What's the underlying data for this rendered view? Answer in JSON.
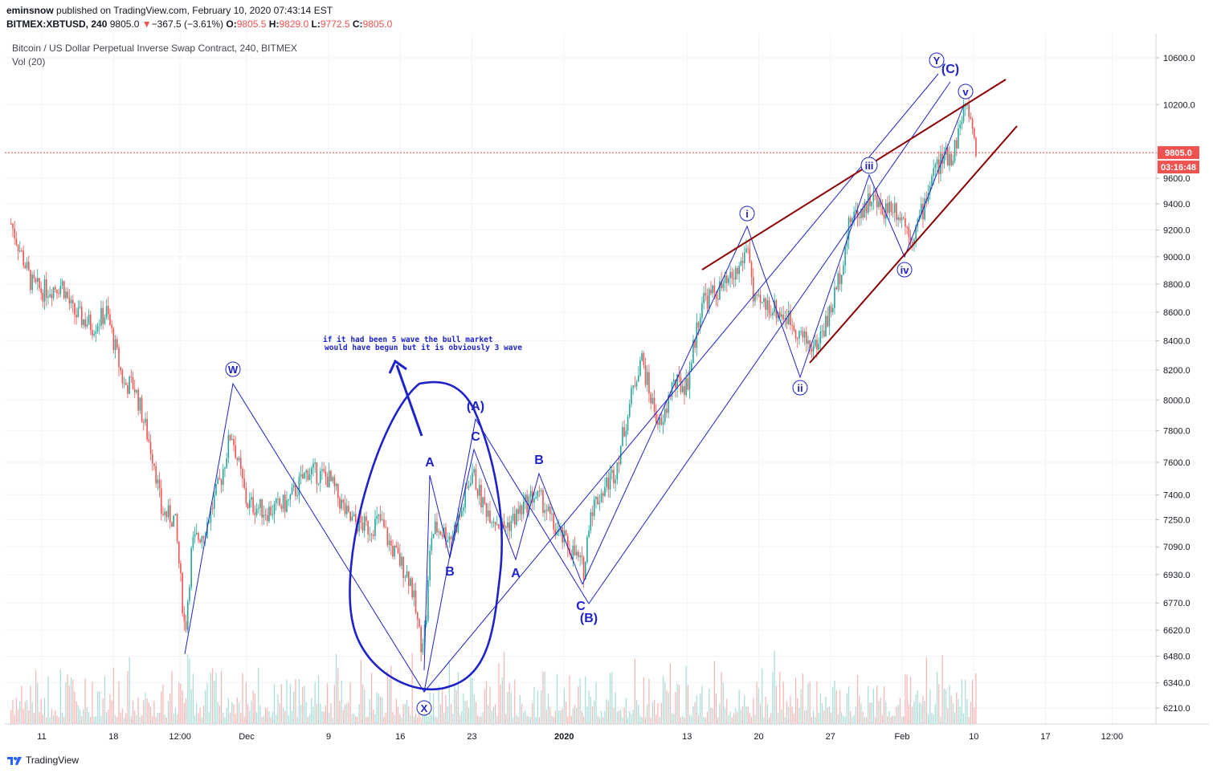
{
  "header": {
    "author": "eminsnow",
    "published": "published on TradingView.com, February 10, 2020 07:43:14 EST",
    "symbol": "BITMEX:XBTUSD,",
    "interval": "240",
    "last": "9805.0",
    "change_arrow": "▼",
    "change": "−367.5 (−3.61%)",
    "o_label": "O:",
    "o_val": "9805.5",
    "h_label": "H:",
    "h_val": "9829.0",
    "l_label": "L:",
    "l_val": "9772.5",
    "c_label": "C:",
    "c_val": "9805.0"
  },
  "legend": {
    "title": "Bitcoin / US Dollar Perpetual Inverse Swap Contract, 240, BITMEX",
    "volume": "Vol (20)"
  },
  "footer": {
    "brand": "TradingView"
  },
  "colors": {
    "up": "#26a69a",
    "down": "#ef5350",
    "wave": "#1e22c8",
    "trend": "#8b0000",
    "price_tag": "#ef5350"
  },
  "chart_data": {
    "type": "candlestick",
    "title": "Bitcoin / US Dollar Perpetual Inverse Swap Contract, 240, BITMEX",
    "price_axis": {
      "scale": "log",
      "ticks": [
        10600,
        10200,
        9800,
        9600,
        9400,
        9200,
        9000,
        8800,
        8600,
        8400,
        8200,
        8000,
        7800,
        7600,
        7400,
        7250,
        7090,
        6930,
        6770,
        6620,
        6480,
        6340,
        6210
      ],
      "tick_labels": [
        "10600.0",
        "10200.0",
        "9800.0",
        "9600.0",
        "9400.0",
        "9200.0",
        "9000.0",
        "8800.0",
        "8600.0",
        "8400.0",
        "8200.0",
        "8000.0",
        "7800.0",
        "7600.0",
        "7400.0",
        "7250.0",
        "7090.0",
        "6930.0",
        "6770.0",
        "6620.0",
        "6480.0",
        "6340.0",
        "6210.0"
      ]
    },
    "time_axis": {
      "labels": [
        "11",
        "18",
        "12:00",
        "Dec",
        "9",
        "16",
        "23",
        "2020",
        "13",
        "20",
        "27",
        "Feb",
        "10",
        "17",
        "12:00"
      ],
      "bold": [
        "2020"
      ]
    },
    "last_price": {
      "value": 9805.0,
      "label": "9805.0",
      "countdown": "03:16:48"
    },
    "price_path": [
      [
        "Nov 8 00:00",
        9250
      ],
      [
        "Nov 10 00:00",
        8800
      ],
      [
        "Nov 11 00:00",
        8750
      ],
      [
        "Nov 13 00:00",
        8800
      ],
      [
        "Nov 14 00:00",
        8600
      ],
      [
        "Nov 16 00:00",
        8500
      ],
      [
        "Nov 17 08:00",
        8600
      ],
      [
        "Nov 19 00:00",
        8100
      ],
      [
        "Nov 20 00:00",
        8100
      ],
      [
        "Nov 22 00:00",
        7600
      ],
      [
        "Nov 22 16:00",
        7300
      ],
      [
        "Nov 24 00:00",
        7250
      ],
      [
        "Nov 25 00:00",
        6600
      ],
      [
        "Nov 25 16:00",
        7100
      ],
      [
        "Nov 27 00:00",
        7200
      ],
      [
        "Nov 28 12:00",
        7500
      ],
      [
        "Nov 29 12:00",
        7800
      ],
      [
        "Dec 1 00:00",
        7350
      ],
      [
        "Dec 3 00:00",
        7300
      ],
      [
        "Dec 5 00:00",
        7350
      ],
      [
        "Dec 7 00:00",
        7550
      ],
      [
        "Dec 9 00:00",
        7500
      ],
      [
        "Dec 11 00:00",
        7250
      ],
      [
        "Dec 13 00:00",
        7200
      ],
      [
        "Dec 14 00:00",
        7250
      ],
      [
        "Dec 15 00:00",
        7100
      ],
      [
        "Dec 17 00:00",
        6900
      ],
      [
        "Dec 18 00:00",
        6550
      ],
      [
        "Dec 18 12:00",
        6650
      ],
      [
        "Dec 19 00:00",
        7150
      ],
      [
        "Dec 19 12:00",
        7200
      ],
      [
        "Dec 21 00:00",
        7150
      ],
      [
        "Dec 22 00:00",
        7300
      ],
      [
        "Dec 23 00:00",
        7550
      ],
      [
        "Dec 24 00:00",
        7350
      ],
      [
        "Dec 26 00:00",
        7200
      ],
      [
        "Dec 27 00:00",
        7250
      ],
      [
        "Dec 29 00:00",
        7400
      ],
      [
        "Dec 30 00:00",
        7350
      ],
      [
        "Dec 31 00:00",
        7200
      ],
      [
        "Jan 2 00:00",
        7050
      ],
      [
        "Jan 3 00:00",
        6950
      ],
      [
        "Jan 3 12:00",
        7300
      ],
      [
        "Jan 6 00:00",
        7550
      ],
      [
        "Jan 7 12:00",
        8000
      ],
      [
        "Jan 8 12:00",
        8300
      ],
      [
        "Jan 9 12:00",
        8000
      ],
      [
        "Jan 10 12:00",
        7800
      ],
      [
        "Jan 11 12:00",
        8100
      ],
      [
        "Jan 13 00:00",
        8100
      ],
      [
        "Jan 14 12:00",
        8700
      ],
      [
        "Jan 15 00:00",
        8700
      ],
      [
        "Jan 17 00:00",
        8800
      ],
      [
        "Jan 18 00:00",
        8900
      ],
      [
        "Jan 19 00:00",
        9100
      ],
      [
        "Jan 19 12:00",
        8650
      ],
      [
        "Jan 21 00:00",
        8650
      ],
      [
        "Jan 23 00:00",
        8550
      ],
      [
        "Jan 24 12:00",
        8400
      ],
      [
        "Jan 25 12:00",
        8350
      ],
      [
        "Jan 27 00:00",
        8600
      ],
      [
        "Jan 28 00:00",
        8900
      ],
      [
        "Jan 29 00:00",
        9300
      ],
      [
        "Jan 30 00:00",
        9350
      ],
      [
        "Jan 31 00:00",
        9450
      ],
      [
        "Feb 1 00:00",
        9350
      ],
      [
        "Feb 2 00:00",
        9400
      ],
      [
        "Feb 3 00:00",
        9300
      ],
      [
        "Feb 4 00:00",
        9150
      ],
      [
        "Feb 5 00:00",
        9350
      ],
      [
        "Feb 6 00:00",
        9650
      ],
      [
        "Feb 7 00:00",
        9750
      ],
      [
        "Feb 8 00:00",
        9800
      ],
      [
        "Feb 9 00:00",
        10150
      ],
      [
        "Feb 9 12:00",
        10150
      ],
      [
        "Feb 10 07:43",
        9805
      ]
    ],
    "wave_labels": [
      {
        "text": "W",
        "circled": true
      },
      {
        "text": "X",
        "circled": true
      },
      {
        "text": "Y",
        "circled": true
      },
      {
        "text": "(A)"
      },
      {
        "text": "(B)"
      },
      {
        "text": "(C)"
      },
      {
        "text": "A"
      },
      {
        "text": "B"
      },
      {
        "text": "C"
      },
      {
        "text": "A"
      },
      {
        "text": "B"
      },
      {
        "text": "C"
      },
      {
        "text": "i",
        "circled": true
      },
      {
        "text": "ii",
        "circled": true
      },
      {
        "text": "iii",
        "circled": true
      },
      {
        "text": "iv",
        "circled": true
      },
      {
        "text": "v",
        "circled": true
      }
    ],
    "annotation": {
      "line1": "if it had been 5 wave the bull market",
      "line2": "would have begun but it is obviously 3 wave"
    }
  }
}
